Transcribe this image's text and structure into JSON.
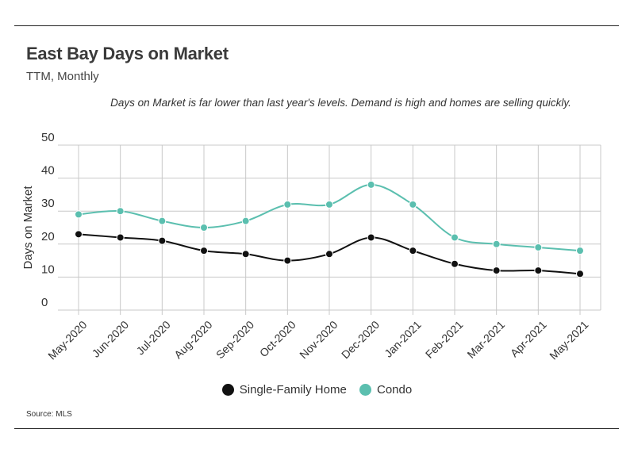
{
  "header": {
    "title": "East Bay Days on Market",
    "subtitle": "TTM, Monthly",
    "note": "Days on Market is far lower than last year's levels. Demand is high and homes are selling quickly."
  },
  "footer": {
    "source": "Source:  MLS"
  },
  "chart_data": {
    "type": "line",
    "title": "East Bay Days on Market",
    "subtitle": "TTM, Monthly",
    "xlabel": "",
    "ylabel": "Days on Market",
    "ylim": [
      0,
      50
    ],
    "yticks": [
      0,
      10,
      20,
      30,
      40,
      50
    ],
    "grid": true,
    "legend": "bottom-center",
    "categories": [
      "May-2020",
      "Jun-2020",
      "Jul-2020",
      "Aug-2020",
      "Sep-2020",
      "Oct-2020",
      "Nov-2020",
      "Dec-2020",
      "Jan-2021",
      "Feb-2021",
      "Mar-2021",
      "Apr-2021",
      "May-2021"
    ],
    "series": [
      {
        "name": "Single-Family Home",
        "color": "#111111",
        "values": [
          23,
          22,
          21,
          18,
          17,
          15,
          17,
          22,
          18,
          14,
          12,
          12,
          11
        ]
      },
      {
        "name": "Condo",
        "color": "#5bbfaf",
        "values": [
          29,
          30,
          27,
          25,
          27,
          32,
          32,
          38,
          32,
          22,
          20,
          19,
          18
        ]
      }
    ]
  }
}
